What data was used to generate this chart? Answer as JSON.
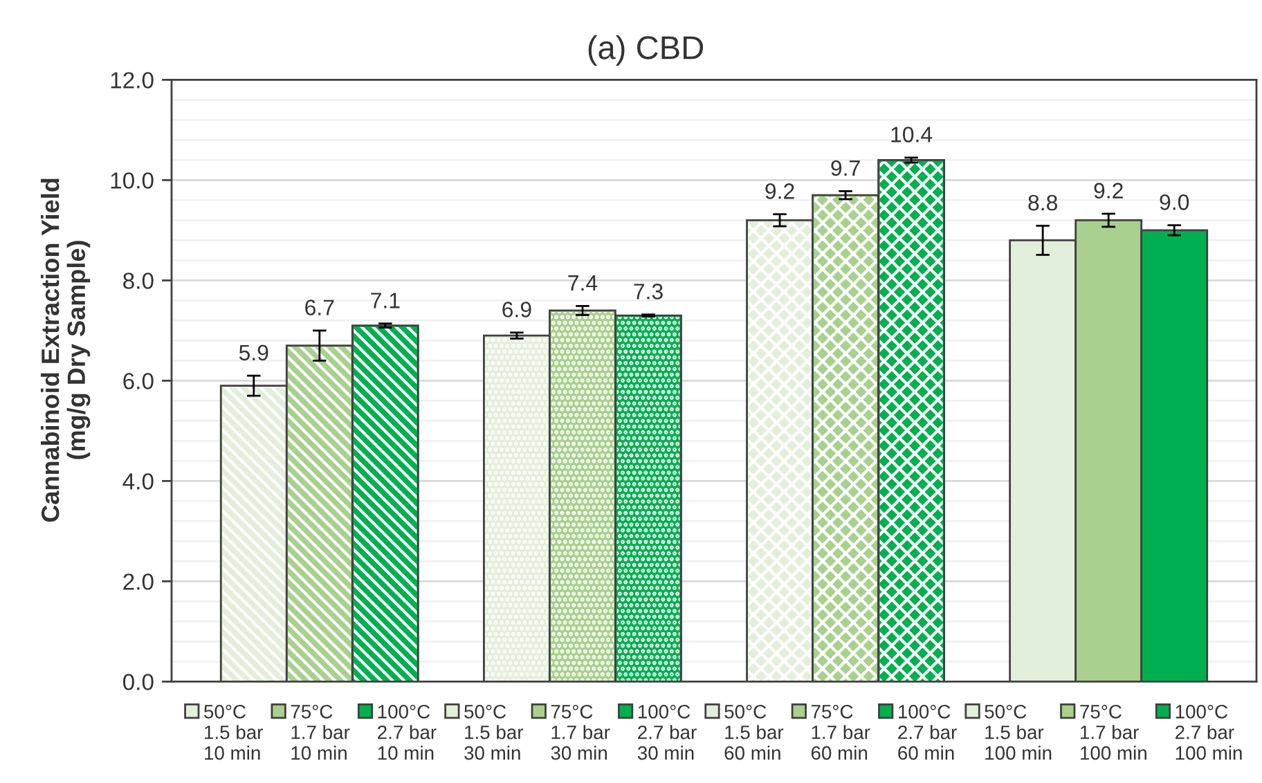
{
  "chart_data": {
    "type": "bar",
    "title": "(a) CBD",
    "ylabel": "Cannabinoid Extraction Yield\n(mg/g Dry Sample)",
    "categories": [
      null,
      null,
      null,
      null
    ],
    "series": [
      {
        "name": "50°C\n1.5 bar\n10 min",
        "color": "#e2efda",
        "values": [
          5.9,
          null,
          null,
          null
        ],
        "errors": [
          0.2,
          null,
          null,
          null
        ],
        "value_labels": [
          "5.9",
          null,
          null,
          null
        ]
      },
      {
        "name": "75°C\n1.7 bar\n10 min",
        "color": "#a9d08e",
        "values": [
          6.7,
          null,
          null,
          null
        ],
        "errors": [
          0.3,
          null,
          null,
          null
        ],
        "value_labels": [
          "6.7",
          null,
          null,
          null
        ]
      },
      {
        "name": "100°C\n2.7 bar\n10 min",
        "color": "#00b050",
        "values": [
          7.1,
          null,
          null,
          null
        ],
        "errors": [
          0.04,
          null,
          null,
          null
        ],
        "value_labels": [
          "7.1",
          null,
          null,
          null
        ]
      },
      {
        "name": "50°C\n1.5 bar\n30 min",
        "color": "#e2efda",
        "values": [
          null,
          6.9,
          null,
          null
        ],
        "errors": [
          null,
          0.06,
          null,
          null
        ],
        "value_labels": [
          null,
          "6.9",
          null,
          null
        ]
      },
      {
        "name": "75°C\n1.7 bar\n30 min",
        "color": "#a9d08e",
        "values": [
          null,
          7.4,
          null,
          null
        ],
        "errors": [
          null,
          0.09,
          null,
          null
        ],
        "value_labels": [
          null,
          "7.4",
          null,
          null
        ]
      },
      {
        "name": "100°C\n2.7 bar\n30 min",
        "color": "#00b050",
        "values": [
          null,
          7.3,
          null,
          null
        ],
        "errors": [
          null,
          0.02,
          null,
          null
        ],
        "value_labels": [
          null,
          "7.3",
          null,
          null
        ]
      },
      {
        "name": "50°C\n1.5 bar\n60 min",
        "color": "#e2efda",
        "values": [
          null,
          null,
          9.2,
          null
        ],
        "errors": [
          null,
          null,
          0.12,
          null
        ],
        "value_labels": [
          null,
          null,
          "9.2",
          null
        ]
      },
      {
        "name": "75°C\n1.7 bar\n60 min",
        "color": "#a9d08e",
        "values": [
          null,
          null,
          9.7,
          null
        ],
        "errors": [
          null,
          null,
          0.08,
          null
        ],
        "value_labels": [
          null,
          null,
          "9.7",
          null
        ]
      },
      {
        "name": "100°C\n2.7 bar\n60 min",
        "color": "#00b050",
        "values": [
          null,
          null,
          10.4,
          null
        ],
        "errors": [
          null,
          null,
          0.05,
          null
        ],
        "value_labels": [
          null,
          null,
          "10.4",
          null
        ]
      },
      {
        "name": "50°C\n1.5 bar\n100 min",
        "color": "#e2efda",
        "values": [
          null,
          null,
          null,
          8.8
        ],
        "errors": [
          null,
          null,
          null,
          0.29
        ],
        "value_labels": [
          null,
          null,
          null,
          "8.8"
        ]
      },
      {
        "name": "75°C\n1.7 bar\n100 min",
        "color": "#a9d08e",
        "values": [
          null,
          null,
          null,
          9.2
        ],
        "errors": [
          null,
          null,
          null,
          0.13
        ],
        "value_labels": [
          null,
          null,
          null,
          "9.2"
        ]
      },
      {
        "name": "100°C\n2.7 bar\n100 min",
        "color": "#00b050",
        "values": [
          null,
          null,
          null,
          9.0
        ],
        "errors": [
          null,
          null,
          null,
          0.1
        ],
        "value_labels": [
          null,
          null,
          null,
          "9.0"
        ]
      }
    ],
    "ylim": [
      0,
      12
    ],
    "yticks": [
      {
        "value": 0,
        "label": "0.0"
      },
      {
        "value": 2,
        "label": "2.0"
      },
      {
        "value": 4,
        "label": "4.0"
      },
      {
        "value": 6,
        "label": "6.0"
      },
      {
        "value": 8,
        "label": "8.0"
      },
      {
        "value": 10,
        "label": "10.0"
      },
      {
        "value": 12,
        "label": "12.0"
      }
    ],
    "grid": "y",
    "legend": "bottom",
    "tick_labels": "y"
  }
}
